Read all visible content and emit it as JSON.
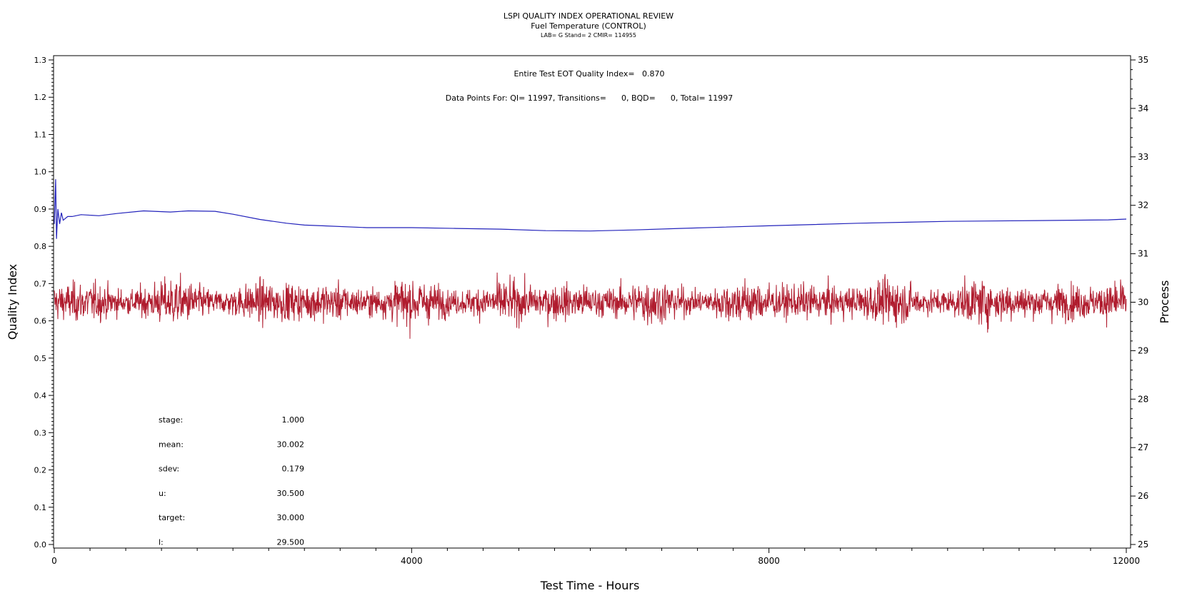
{
  "chart_data": {
    "type": "line",
    "title": "LSPI QUALITY INDEX OPERATIONAL REVIEW",
    "subtitle": "Fuel Temperature (CONTROL)",
    "subsubtitle": "LAB= G Stand= 2 CMIR= 114955",
    "xlabel": "Test Time - Hours",
    "ylabel": "Quality Index",
    "y2label": "Process",
    "xlim": [
      0,
      12000
    ],
    "ylim": [
      0,
      1.3
    ],
    "y2lim": [
      25,
      35
    ],
    "xticks": [
      "0",
      "4000",
      "8000",
      "12000"
    ],
    "yticks": [
      "0.0",
      "0.1",
      "0.2",
      "0.3",
      "0.4",
      "0.5",
      "0.6",
      "0.7",
      "0.8",
      "0.9",
      "1.0",
      "1.1",
      "1.2",
      "1.3"
    ],
    "y2ticks": [
      "25",
      "26",
      "27",
      "28",
      "29",
      "30",
      "31",
      "32",
      "33",
      "34",
      "35"
    ],
    "annotations": {
      "qi_line": "Entire Test EOT Quality Index=   0.870",
      "points_line": "Data Points For: QI= 11997, Transitions=      0, BQD=      0, Total= 11997"
    },
    "stats": [
      {
        "label": "stage:",
        "value": "1.000"
      },
      {
        "label": "mean:",
        "value": "30.002"
      },
      {
        "label": "sdev:",
        "value": "0.179"
      },
      {
        "label": "u:",
        "value": "30.500"
      },
      {
        "label": "target:",
        "value": "30.000"
      },
      {
        "label": "l:",
        "value": "29.500"
      }
    ],
    "series": [
      {
        "axis": "left",
        "color": "#2222bb",
        "x": [
          0,
          15,
          25,
          40,
          60,
          80,
          100,
          150,
          200,
          300,
          500,
          700,
          1000,
          1300,
          1500,
          1800,
          2000,
          2300,
          2600,
          2800,
          3000,
          3500,
          4000,
          4500,
          5000,
          5500,
          6000,
          6500,
          7000,
          8000,
          9000,
          10000,
          11000,
          11800,
          12000
        ],
        "values": [
          0.86,
          0.98,
          0.82,
          0.9,
          0.86,
          0.89,
          0.87,
          0.88,
          0.88,
          0.885,
          0.882,
          0.888,
          0.895,
          0.892,
          0.895,
          0.894,
          0.886,
          0.872,
          0.862,
          0.857,
          0.855,
          0.85,
          0.85,
          0.848,
          0.846,
          0.842,
          0.841,
          0.844,
          0.848,
          0.855,
          0.862,
          0.867,
          0.869,
          0.871,
          0.873
        ]
      },
      {
        "axis": "right",
        "color": "#b01c2e",
        "mean": 30.002,
        "sdev": 0.179,
        "n_points": 11997
      }
    ]
  }
}
